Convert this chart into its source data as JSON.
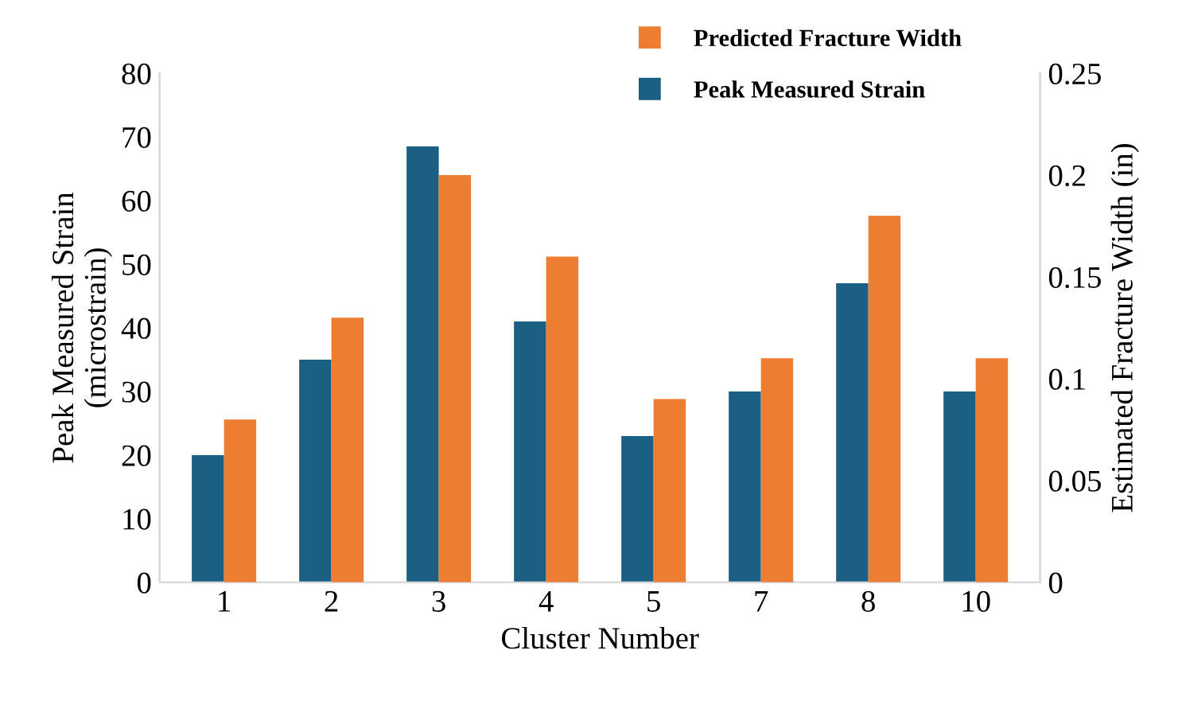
{
  "chart_data": {
    "type": "bar",
    "xlabel": "Cluster Number",
    "ylabel": "Peak Measured Strain\n(microstrain)",
    "y2label": "Estimated Fracture Width (in)",
    "categories": [
      "1",
      "2",
      "3",
      "4",
      "5",
      "7",
      "8",
      "10"
    ],
    "series": [
      {
        "name": "Peak Measured Strain",
        "color": "#1b6083",
        "values": [
          20,
          35,
          68.5,
          41,
          23,
          30,
          47,
          30
        ]
      },
      {
        "name": "Predicted Fracture Width",
        "color": "#ed7d31",
        "axis": "y2",
        "values": [
          0.08,
          0.13,
          0.2,
          0.16,
          0.09,
          0.11,
          0.18,
          0.11
        ]
      }
    ],
    "ylim": [
      0,
      80
    ],
    "yticks": [
      0,
      10,
      20,
      30,
      40,
      50,
      60,
      70,
      80
    ],
    "y2lim": [
      0,
      0.25
    ],
    "y2ticks": [
      {
        "value": 0,
        "label": "0"
      },
      0.05,
      0.1,
      0.15,
      0.2,
      0.25
    ],
    "legend": "top"
  }
}
